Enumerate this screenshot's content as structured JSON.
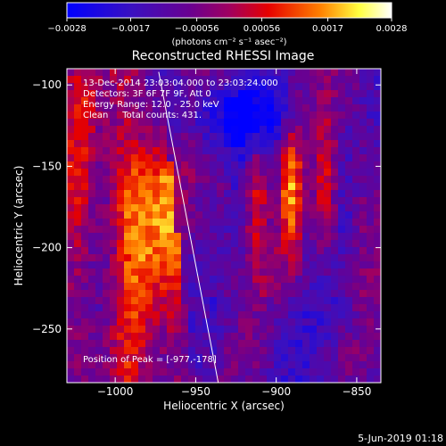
{
  "chart_data": {
    "type": "heatmap",
    "title": "Reconstructed RHESSI Image",
    "xlabel": "Heliocentric X (arcsec)",
    "ylabel": "Heliocentric Y (arcsec)",
    "xlim": [
      -1030,
      -835
    ],
    "ylim": [
      -283,
      -90
    ],
    "x_ticks": [
      -1000,
      -950,
      -900,
      -850
    ],
    "y_ticks": [
      -100,
      -150,
      -200,
      -250
    ],
    "x_tick_labels": [
      "−1000",
      "−950",
      "−900",
      "−850"
    ],
    "y_tick_labels": [
      "−100",
      "−150",
      "−200",
      "−250"
    ],
    "limb_line": {
      "x": [
        -973,
        -936
      ],
      "y": [
        -92,
        -283
      ]
    },
    "colorbar": {
      "min": -0.0028,
      "max": 0.0028,
      "ticks": [
        -0.0028,
        -0.0017,
        -0.00056,
        0.00056,
        0.0017,
        0.0028
      ],
      "tick_labels": [
        "−0.0028",
        "−0.0017",
        "−0.00056",
        "0.00056",
        "0.0017",
        "0.0028"
      ],
      "unit_label": "(photons cm⁻² s⁻¹ asec⁻²)",
      "colors": [
        "#0000ff",
        "#4b0082",
        "#8b0080",
        "#e60000",
        "#ff8000",
        "#ffff60",
        "#ffffff"
      ]
    },
    "annotations": [
      "13-Dec-2014 23:03:04.000 to 23:03:24.000",
      "Detectors: 3F 6F 7F 9F, Att 0",
      "Energy Range: 12.0 - 25.0 keV",
      "Clean     Total counts: 431."
    ],
    "peak_label": "Position of Peak = [-977,-178]",
    "grid": false
  },
  "footer": {
    "timestamp": "5-Jun-2019 01:18"
  }
}
